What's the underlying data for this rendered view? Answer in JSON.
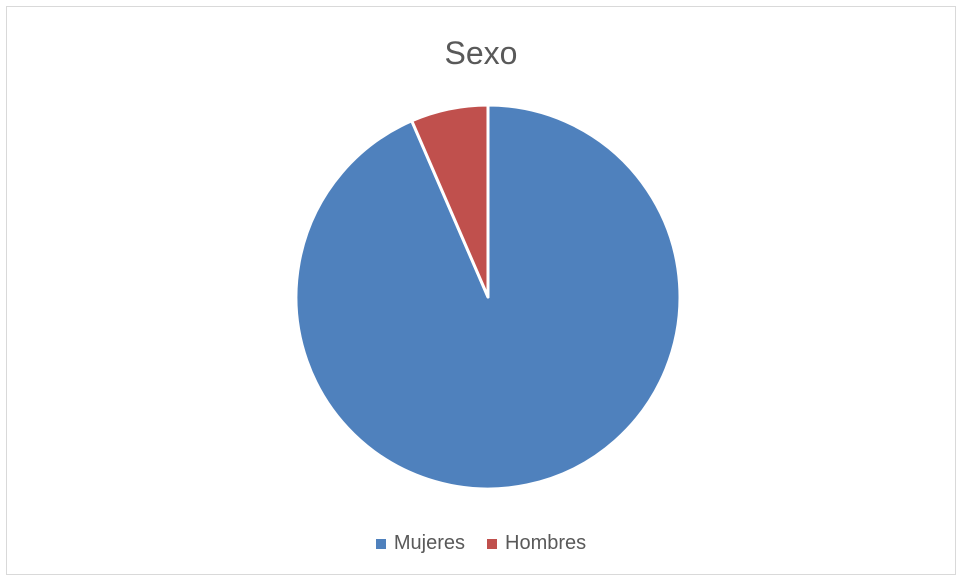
{
  "chart_data": {
    "type": "pie",
    "title": "Sexo",
    "categories": [
      "Mujeres",
      "Hombres"
    ],
    "values": [
      93.5,
      6.5
    ],
    "colors": [
      "#4f81bd",
      "#c0504d"
    ],
    "start_angle_deg": 0,
    "direction": "clockwise",
    "legend": "bottom"
  }
}
